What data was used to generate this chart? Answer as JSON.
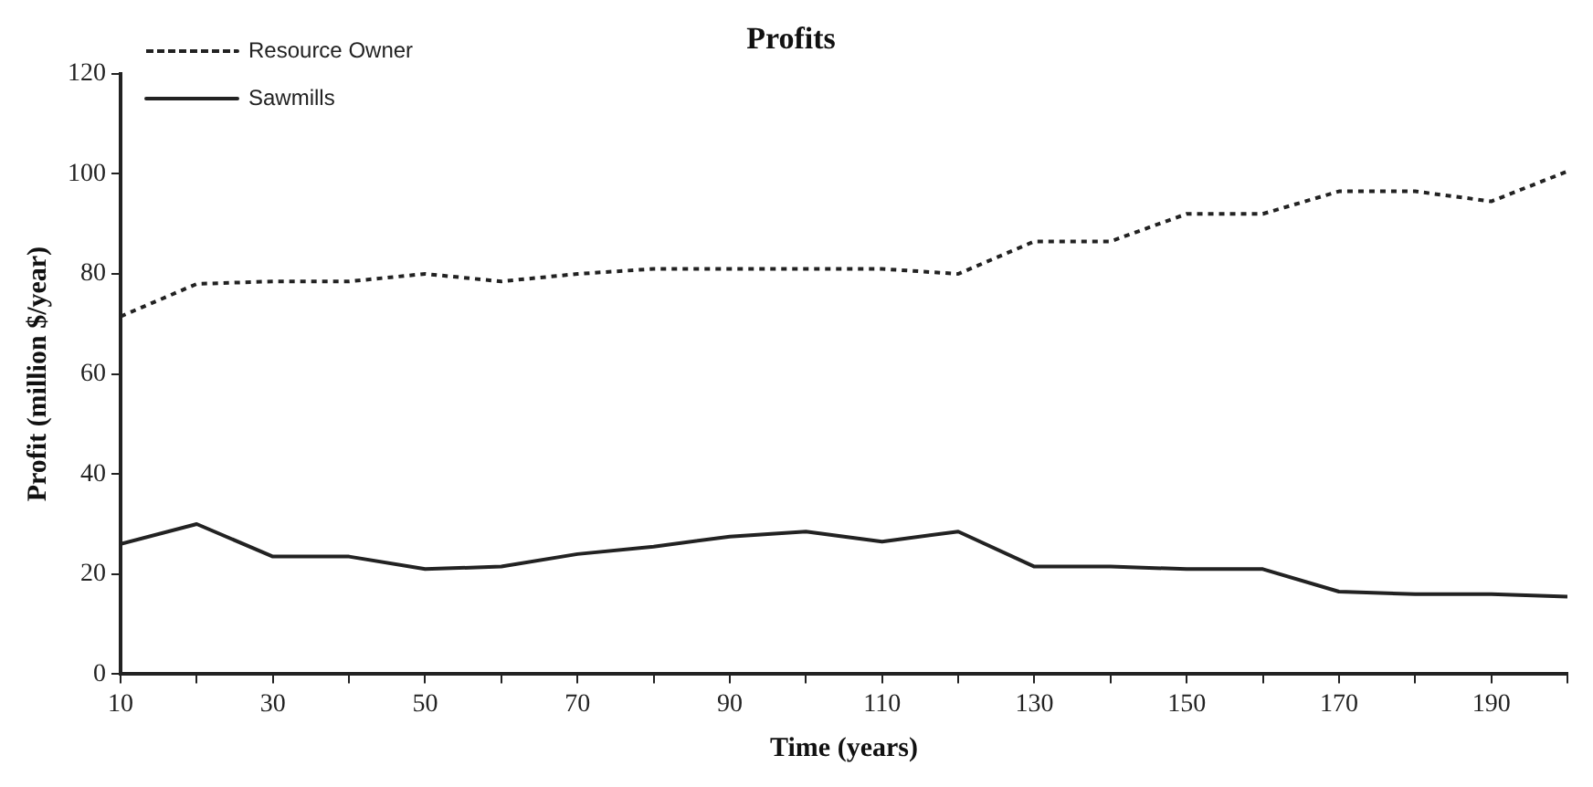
{
  "chart_data": {
    "type": "line",
    "title": "Profits",
    "xlabel": "Time (years)",
    "ylabel": "Profit (million $/year)",
    "x": [
      10,
      20,
      30,
      40,
      50,
      60,
      70,
      80,
      90,
      100,
      110,
      120,
      130,
      140,
      150,
      160,
      170,
      180,
      190,
      200
    ],
    "series": [
      {
        "name": "Resource Owner",
        "color": "#222222",
        "line_style": "dotted",
        "values": [
          71.5,
          78,
          78.5,
          78.5,
          80,
          78.5,
          80,
          81,
          81,
          81,
          81,
          80,
          86.5,
          86.5,
          92,
          92,
          96.5,
          96.5,
          94.5,
          100.5
        ]
      },
      {
        "name": "Sawmills",
        "color": "#222222",
        "line_style": "solid",
        "values": [
          26,
          30,
          23.5,
          23.5,
          21,
          21.5,
          24,
          25.5,
          27.5,
          28.5,
          26.5,
          28.5,
          21.5,
          21.5,
          21,
          21,
          16.5,
          16,
          16,
          15.5
        ]
      }
    ],
    "xlim": [
      10,
      200
    ],
    "xticks": [
      10,
      {
        "value": 20,
        "label": null
      },
      30,
      {
        "value": 40,
        "label": null
      },
      50,
      {
        "value": 60,
        "label": null
      },
      70,
      {
        "value": 80,
        "label": null
      },
      90,
      {
        "value": 100,
        "label": null
      },
      110,
      {
        "value": 120,
        "label": null
      },
      130,
      {
        "value": 140,
        "label": null
      },
      150,
      {
        "value": 160,
        "label": null
      },
      170,
      {
        "value": 180,
        "label": null
      },
      190,
      {
        "value": 200,
        "label": null
      }
    ],
    "ylim": [
      0,
      120
    ],
    "yticks": [
      0,
      20,
      40,
      60,
      80,
      100,
      120
    ],
    "grid": false,
    "legend": "top left",
    "marker": "none"
  }
}
